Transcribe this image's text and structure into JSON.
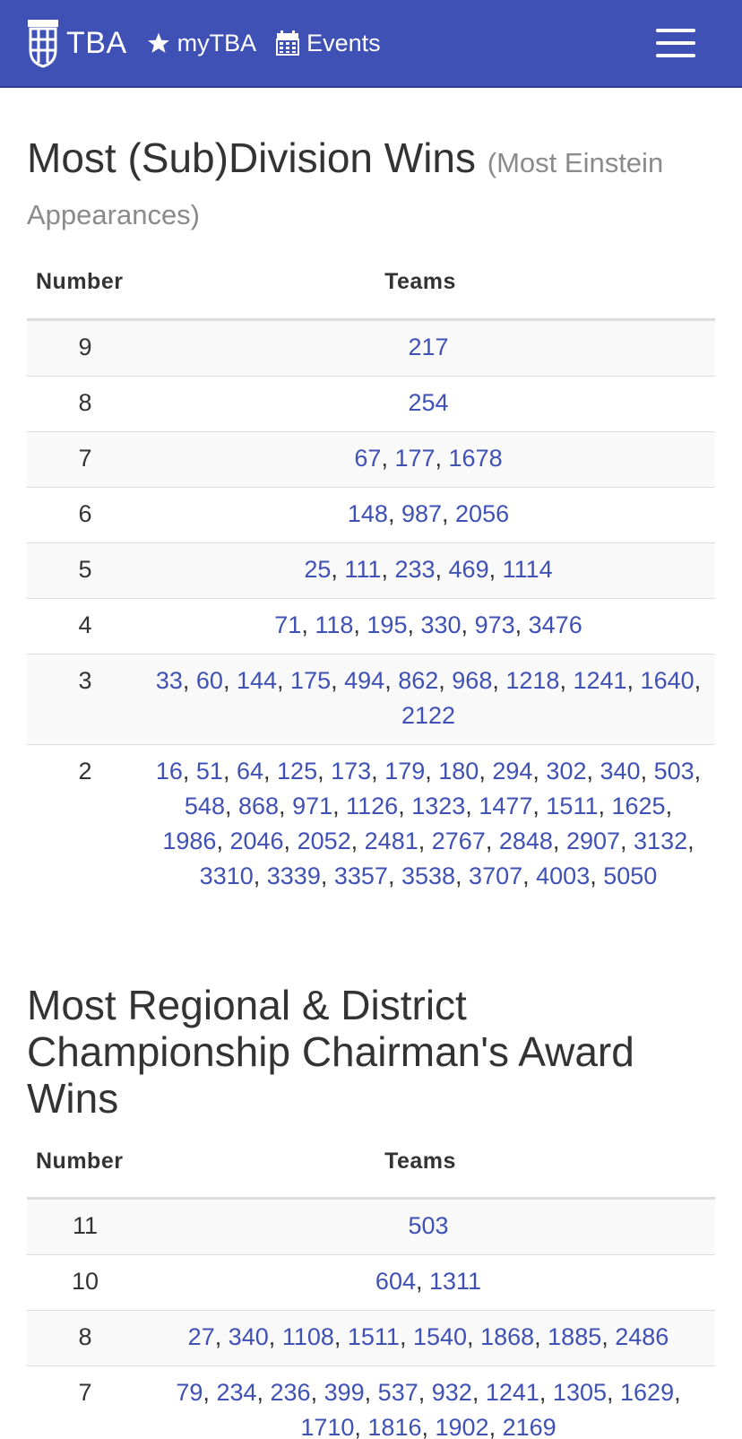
{
  "navbar": {
    "brand": "TBA",
    "mytba_label": "myTBA",
    "events_label": "Events"
  },
  "sections": [
    {
      "title": "Most (Sub)Division Wins",
      "subtitle": "(Most Einstein Appearances)",
      "header_number": "Number",
      "header_teams": "Teams",
      "rows": [
        {
          "number": "9",
          "teams": [
            "217"
          ]
        },
        {
          "number": "8",
          "teams": [
            "254"
          ]
        },
        {
          "number": "7",
          "teams": [
            "67",
            "177",
            "1678"
          ]
        },
        {
          "number": "6",
          "teams": [
            "148",
            "987",
            "2056"
          ]
        },
        {
          "number": "5",
          "teams": [
            "25",
            "111",
            "233",
            "469",
            "1114"
          ]
        },
        {
          "number": "4",
          "teams": [
            "71",
            "118",
            "195",
            "330",
            "973",
            "3476"
          ]
        },
        {
          "number": "3",
          "teams": [
            "33",
            "60",
            "144",
            "175",
            "494",
            "862",
            "968",
            "1218",
            "1241",
            "1640",
            "2122"
          ]
        },
        {
          "number": "2",
          "teams": [
            "16",
            "51",
            "64",
            "125",
            "173",
            "179",
            "180",
            "294",
            "302",
            "340",
            "503",
            "548",
            "868",
            "971",
            "1126",
            "1323",
            "1477",
            "1511",
            "1625",
            "1986",
            "2046",
            "2052",
            "2481",
            "2767",
            "2848",
            "2907",
            "3132",
            "3310",
            "3339",
            "3357",
            "3538",
            "3707",
            "4003",
            "5050"
          ]
        }
      ]
    },
    {
      "title": "Most Regional & District Championship Chairman's Award Wins",
      "subtitle": "",
      "header_number": "Number",
      "header_teams": "Teams",
      "rows": [
        {
          "number": "11",
          "teams": [
            "503"
          ]
        },
        {
          "number": "10",
          "teams": [
            "604",
            "1311"
          ]
        },
        {
          "number": "8",
          "teams": [
            "27",
            "340",
            "1108",
            "1511",
            "1540",
            "1868",
            "1885",
            "2486"
          ]
        },
        {
          "number": "7",
          "teams": [
            "79",
            "234",
            "236",
            "399",
            "537",
            "932",
            "1241",
            "1305",
            "1629",
            "1710",
            "1816",
            "1902",
            "2169"
          ]
        }
      ]
    }
  ]
}
